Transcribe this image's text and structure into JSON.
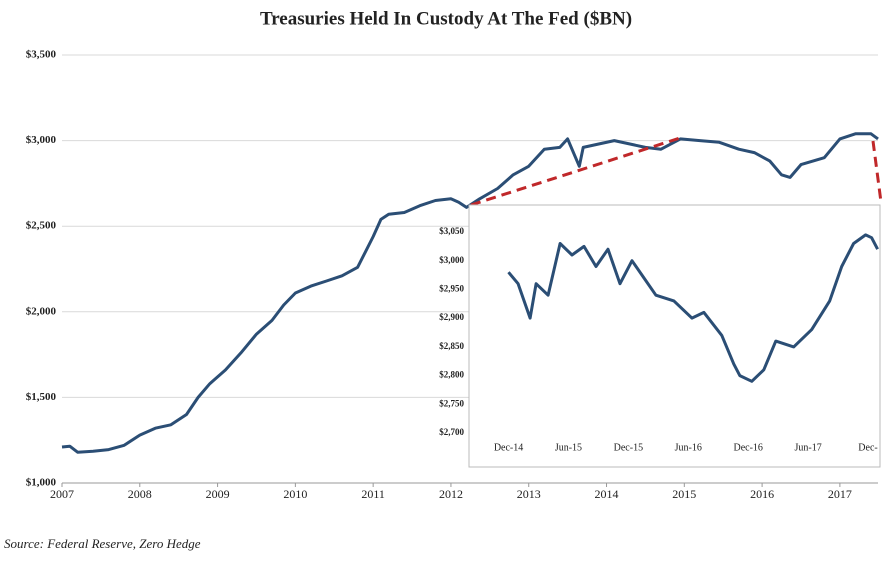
{
  "chart_data": [
    {
      "type": "line",
      "title": "Treasuries Held In Custody At The Fed ($BN)",
      "color": "#2b4e75",
      "grid": true,
      "x": [
        2007.0,
        2007.1,
        2007.2,
        2007.4,
        2007.6,
        2007.8,
        2008.0,
        2008.2,
        2008.4,
        2008.6,
        2008.75,
        2008.9,
        2009.1,
        2009.3,
        2009.5,
        2009.7,
        2009.85,
        2010.0,
        2010.2,
        2010.4,
        2010.6,
        2010.8,
        2010.9,
        2011.0,
        2011.1,
        2011.2,
        2011.4,
        2011.6,
        2011.8,
        2012.0,
        2012.1,
        2012.2,
        2012.37,
        2012.6,
        2012.8,
        2013.0,
        2013.2,
        2013.4,
        2013.5,
        2013.65,
        2013.7,
        2013.9,
        2014.1,
        2014.3,
        2014.5,
        2014.7,
        2014.95,
        2015.2,
        2015.45,
        2015.7,
        2015.9,
        2016.1,
        2016.25,
        2016.36,
        2016.5,
        2016.8,
        2017.0,
        2017.2,
        2017.4,
        2017.49
      ],
      "values": [
        1210,
        1215,
        1180,
        1185,
        1195,
        1220,
        1280,
        1320,
        1340,
        1400,
        1500,
        1580,
        1660,
        1760,
        1870,
        1950,
        2040,
        2110,
        2150,
        2180,
        2210,
        2260,
        2350,
        2440,
        2540,
        2570,
        2580,
        2620,
        2650,
        2660,
        2640,
        2610,
        2660,
        2720,
        2800,
        2850,
        2950,
        2960,
        3010,
        2850,
        2960,
        2980,
        3000,
        2980,
        2960,
        2950,
        3010,
        3000,
        2990,
        2950,
        2930,
        2880,
        2800,
        2785,
        2860,
        2900,
        3010,
        3040,
        3040,
        3010
      ],
      "xlim": [
        2007,
        2017.49
      ],
      "xticks": [
        2007,
        2008,
        2009,
        2010,
        2011,
        2012,
        2013,
        2014,
        2015,
        2016,
        2017
      ],
      "ylim": [
        1000,
        3500
      ],
      "yticks": [
        {
          "value": 1000,
          "label": "$1,000"
        },
        {
          "value": 1500,
          "label": "$1,500"
        },
        {
          "value": 2000,
          "label": "$2,000"
        },
        {
          "value": 2500,
          "label": "$2,500"
        },
        {
          "value": 3000,
          "label": "$3,000"
        },
        {
          "value": 3500,
          "label": "$3,500"
        }
      ]
    },
    {
      "type": "line",
      "color": "#2b4e75",
      "grid": false,
      "x": [
        2014.92,
        2015.0,
        2015.1,
        2015.15,
        2015.25,
        2015.35,
        2015.45,
        2015.55,
        2015.65,
        2015.75,
        2015.85,
        2015.95,
        2016.05,
        2016.15,
        2016.3,
        2016.45,
        2016.55,
        2016.7,
        2016.8,
        2016.85,
        2016.95,
        2017.05,
        2017.15,
        2017.3,
        2017.45,
        2017.6,
        2017.7,
        2017.8,
        2017.9,
        2017.95,
        2018.0
      ],
      "values": [
        2980,
        2960,
        2900,
        2960,
        2940,
        3030,
        3010,
        3025,
        2990,
        3020,
        2960,
        3000,
        2970,
        2940,
        2930,
        2900,
        2910,
        2870,
        2820,
        2800,
        2790,
        2810,
        2860,
        2850,
        2880,
        2930,
        2990,
        3030,
        3045,
        3040,
        3020
      ],
      "xlim": [
        2014.59,
        2018.02
      ],
      "xticks": [
        {
          "value": 2014.92,
          "label": "Dec-14"
        },
        {
          "value": 2015.42,
          "label": "Jun-15"
        },
        {
          "value": 2015.92,
          "label": "Dec-15"
        },
        {
          "value": 2016.42,
          "label": "Jun-16"
        },
        {
          "value": 2016.92,
          "label": "Dec-16"
        },
        {
          "value": 2017.42,
          "label": "Jun-17"
        },
        {
          "value": 2017.92,
          "label": "Dec-"
        }
      ],
      "ylim": [
        2700,
        3050
      ],
      "yticks": [
        {
          "value": 2700,
          "label": "$2,700"
        },
        {
          "value": 2750,
          "label": "$2,750"
        },
        {
          "value": 2800,
          "label": "$2,800"
        },
        {
          "value": 2850,
          "label": "$2,850"
        },
        {
          "value": 2900,
          "label": "$2,900"
        },
        {
          "value": 2950,
          "label": "$2,950"
        },
        {
          "value": 3000,
          "label": "$3,000"
        },
        {
          "value": 3050,
          "label": "$3,050"
        }
      ]
    }
  ],
  "source": "Source: Federal Reserve, Zero Hedge"
}
